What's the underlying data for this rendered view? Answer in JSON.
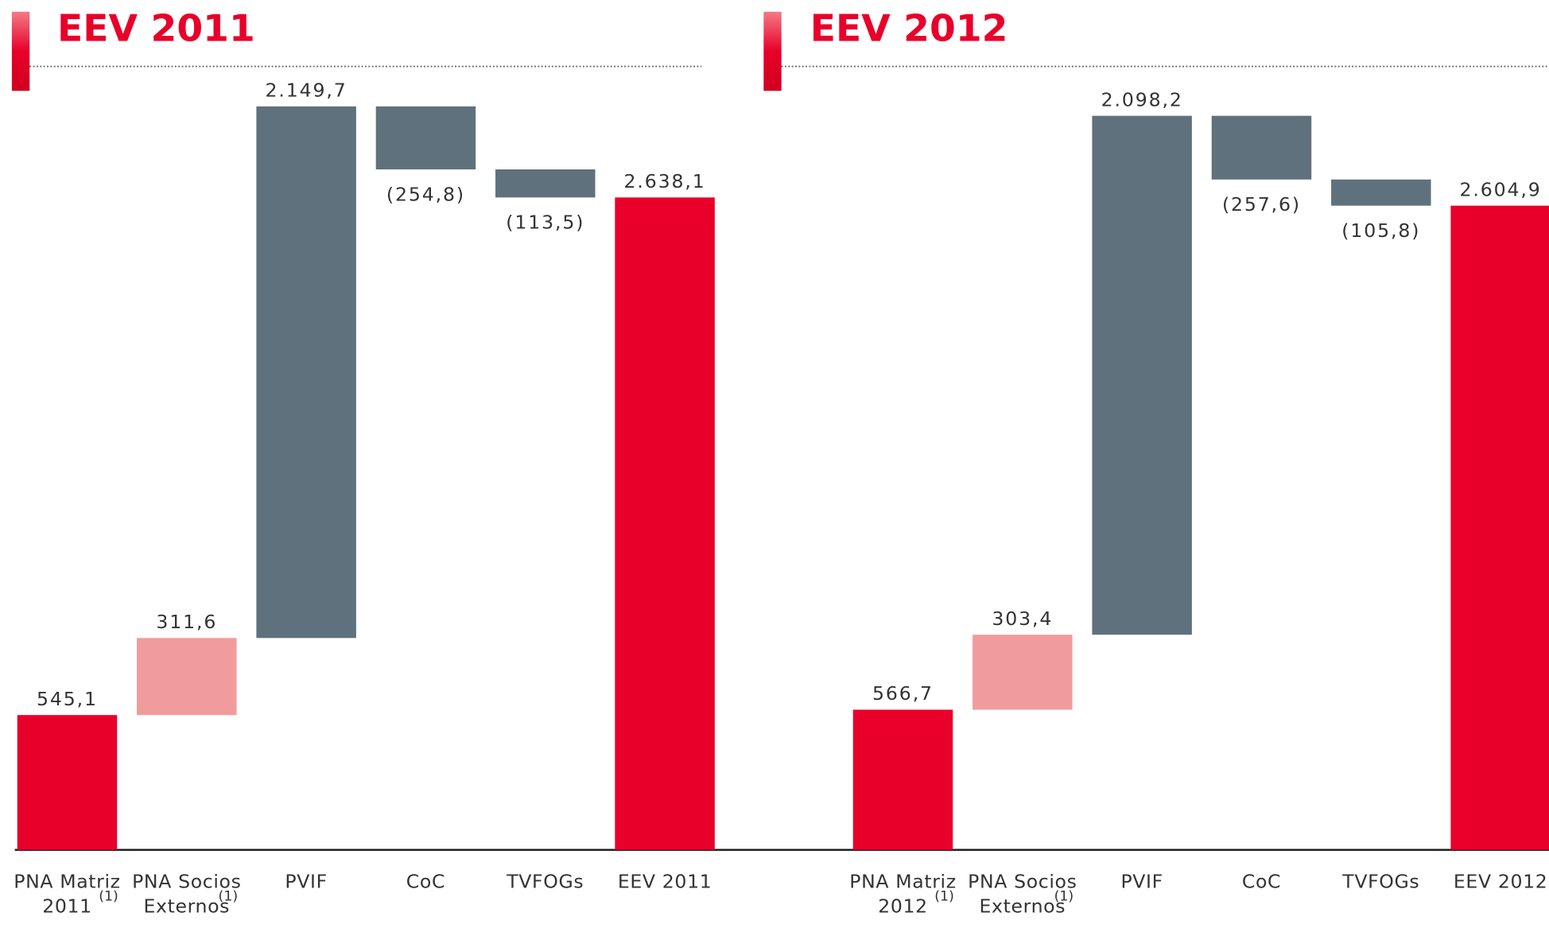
{
  "chart_data": [
    {
      "type": "waterfall",
      "title": "EEV 2011",
      "categories": [
        [
          "PNA Matriz",
          "2011"
        ],
        [
          "PNA Socios",
          "Externos"
        ],
        [
          "PVIF"
        ],
        [
          "CoC"
        ],
        [
          "TVFOGs"
        ],
        [
          "EEV 2011"
        ]
      ],
      "category_notes": [
        "(1)",
        "(1)",
        null,
        null,
        null,
        null
      ],
      "values": [
        545.1,
        311.6,
        2149.7,
        -254.8,
        -113.5,
        2638.1
      ],
      "value_labels": [
        "545,1",
        "311,6",
        "2.149,7",
        "(254,8)",
        "(113,5)",
        "2.638,1"
      ],
      "measure": [
        "absolute",
        "relative",
        "relative",
        "relative",
        "relative",
        "total"
      ],
      "colors": [
        "#e8002a",
        "#f09c9c",
        "#5f717c",
        "#5f717c",
        "#5f717c",
        "#e8002a"
      ],
      "ylim": [
        0,
        3010
      ]
    },
    {
      "type": "waterfall",
      "title": "EEV 2012",
      "categories": [
        [
          "PNA Matriz",
          "2012"
        ],
        [
          "PNA Socios",
          "Externos"
        ],
        [
          "PVIF"
        ],
        [
          "CoC"
        ],
        [
          "TVFOGs"
        ],
        [
          "EEV 2012"
        ]
      ],
      "category_notes": [
        "(1)",
        "(1)",
        null,
        null,
        null,
        null
      ],
      "values": [
        566.7,
        303.4,
        2098.2,
        -257.6,
        -105.8,
        2604.9
      ],
      "value_labels": [
        "566,7",
        "303,4",
        "2.098,2",
        "(257,6)",
        "(105,8)",
        "2.604,9"
      ],
      "measure": [
        "absolute",
        "relative",
        "relative",
        "relative",
        "relative",
        "total"
      ],
      "colors": [
        "#e8002a",
        "#f09c9c",
        "#5f717c",
        "#5f717c",
        "#5f717c",
        "#e8002a"
      ],
      "ylim": [
        0,
        3010
      ]
    }
  ]
}
